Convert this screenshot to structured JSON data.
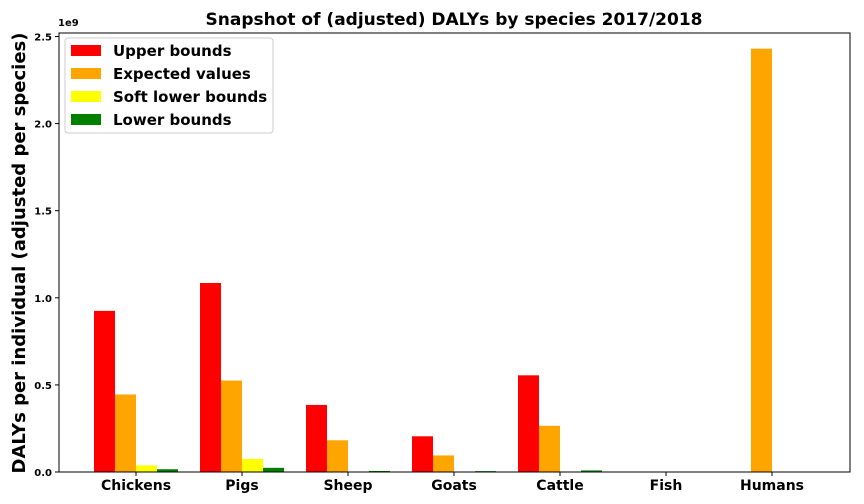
{
  "chart_data": {
    "type": "bar",
    "title": "Snapshot of (adjusted) DALYs by species 2017/2018",
    "ylabel": "DALYs per individual (adjusted per species)",
    "y_offset_label": "1e9",
    "ylim": [
      0,
      2.52
    ],
    "y_ticks": [
      "0.0",
      "0.5",
      "1.0",
      "1.5",
      "2.0",
      "2.5"
    ],
    "y_tick_values": [
      0.0,
      0.5,
      1.0,
      1.5,
      2.0,
      2.5
    ],
    "categories": [
      "Chickens",
      "Pigs",
      "Sheep",
      "Goats",
      "Cattle",
      "Fish",
      "Humans"
    ],
    "series": [
      {
        "name": "Upper bounds",
        "color": "#ff0000",
        "values": [
          0.925,
          1.085,
          0.385,
          0.205,
          0.555,
          0,
          0
        ]
      },
      {
        "name": "Expected values",
        "color": "#ffa500",
        "values": [
          0.445,
          0.525,
          0.182,
          0.095,
          0.265,
          0,
          2.43
        ]
      },
      {
        "name": "Soft lower bounds",
        "color": "#ffff00",
        "values": [
          0.038,
          0.075,
          0.0,
          0.0,
          0.0,
          0,
          0
        ]
      },
      {
        "name": "Lower bounds",
        "color": "#008000",
        "values": [
          0.016,
          0.024,
          0.006,
          0.005,
          0.009,
          0,
          0
        ]
      }
    ],
    "legend_position": "top-left",
    "grid": false
  }
}
